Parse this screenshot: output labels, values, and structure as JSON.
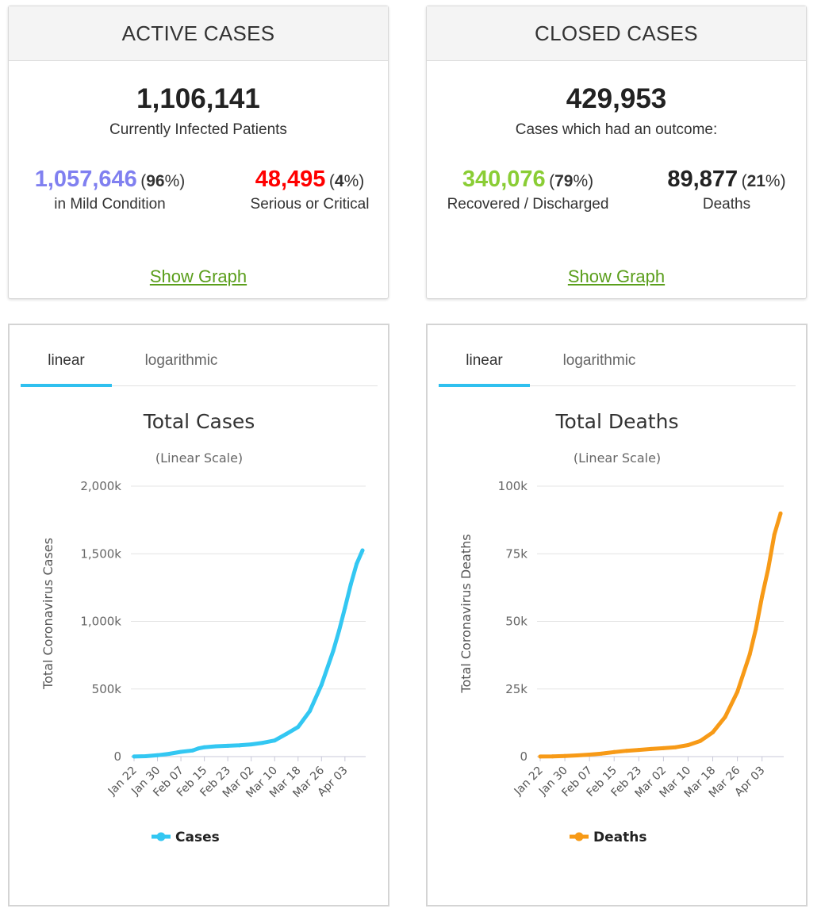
{
  "active": {
    "header": "ACTIVE CASES",
    "total": "1,106,141",
    "total_label": "Currently Infected Patients",
    "mild": {
      "number": "1,057,646",
      "pct_open": "(",
      "pct": "96",
      "pct_close": "%)",
      "label": "in Mild Condition",
      "color": "#8080f0"
    },
    "serious": {
      "number": "48,495",
      "pct_open": "(",
      "pct": "4",
      "pct_close": "%)",
      "label": "Serious or Critical",
      "color": "#ff0000"
    },
    "link": "Show Graph"
  },
  "closed": {
    "header": "CLOSED CASES",
    "total": "429,953",
    "total_label": "Cases which had an outcome:",
    "recovered": {
      "number": "340,076",
      "pct_open": "(",
      "pct": "79",
      "pct_close": "%)",
      "label": "Recovered / Discharged",
      "color": "#8acd35"
    },
    "deaths": {
      "number": "89,877",
      "pct_open": "(",
      "pct": "21",
      "pct_close": "%)",
      "label": "Deaths",
      "color": "#222222"
    },
    "link": "Show Graph"
  },
  "tabs": {
    "linear": "linear",
    "log": "logarithmic"
  },
  "chart_data": [
    {
      "type": "line",
      "title": "Total Cases",
      "subtitle": "(Linear Scale)",
      "ylabel": "Total Coronavirus Cases",
      "xlabel": "",
      "x_tick_labels": [
        "Jan 22",
        "Jan 30",
        "Feb 07",
        "Feb 15",
        "Feb 23",
        "Mar 02",
        "Mar 10",
        "Mar 18",
        "Mar 26",
        "Apr 03"
      ],
      "y_tick_labels": [
        "0",
        "500k",
        "1,000k",
        "1,500k",
        "2,000k"
      ],
      "ylim": [
        0,
        2000000
      ],
      "grid": true,
      "legend": "bottom",
      "color": "#33c7f2",
      "series": [
        {
          "name": "Cases",
          "x": [
            "Jan 22",
            "Jan 26",
            "Jan 30",
            "Feb 03",
            "Feb 07",
            "Feb 11",
            "Feb 13",
            "Feb 15",
            "Feb 19",
            "Feb 23",
            "Feb 27",
            "Mar 02",
            "Mar 06",
            "Mar 10",
            "Mar 14",
            "Mar 18",
            "Mar 22",
            "Mar 26",
            "Mar 30",
            "Apr 01",
            "Apr 03",
            "Apr 05",
            "Apr 07",
            "Apr 09"
          ],
          "values": [
            600,
            2900,
            9900,
            20600,
            34900,
            45200,
            60400,
            69200,
            76200,
            79600,
            83100,
            90400,
            102000,
            119000,
            167500,
            219000,
            336000,
            531000,
            782000,
            932000,
            1098000,
            1273000,
            1425000,
            1525000
          ]
        }
      ]
    },
    {
      "type": "line",
      "title": "Total Deaths",
      "subtitle": "(Linear Scale)",
      "ylabel": "Total Coronavirus Deaths",
      "xlabel": "",
      "x_tick_labels": [
        "Jan 22",
        "Jan 30",
        "Feb 07",
        "Feb 15",
        "Feb 23",
        "Mar 02",
        "Mar 10",
        "Mar 18",
        "Mar 26",
        "Apr 03"
      ],
      "y_tick_labels": [
        "0",
        "25k",
        "50k",
        "75k",
        "100k"
      ],
      "ylim": [
        0,
        100000
      ],
      "grid": true,
      "legend": "bottom",
      "color": "#f79a17",
      "series": [
        {
          "name": "Deaths",
          "x": [
            "Jan 22",
            "Jan 26",
            "Jan 30",
            "Feb 03",
            "Feb 07",
            "Feb 11",
            "Feb 15",
            "Feb 19",
            "Feb 23",
            "Feb 27",
            "Mar 02",
            "Mar 06",
            "Mar 10",
            "Mar 14",
            "Mar 18",
            "Mar 22",
            "Mar 26",
            "Mar 30",
            "Apr 01",
            "Apr 03",
            "Apr 05",
            "Apr 07",
            "Apr 09"
          ],
          "values": [
            17,
            56,
            213,
            427,
            722,
            1118,
            1670,
            2128,
            2469,
            2811,
            3112,
            3460,
            4262,
            5819,
            8944,
            14640,
            23970,
            37800,
            47200,
            59200,
            69500,
            82100,
            89900
          ]
        }
      ]
    }
  ]
}
